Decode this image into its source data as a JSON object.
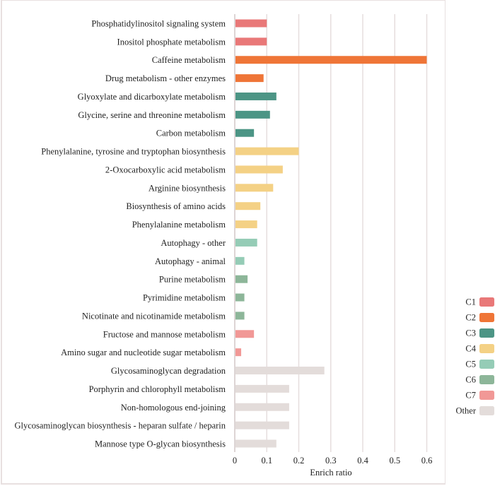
{
  "chart_data": {
    "type": "bar",
    "orientation": "horizontal",
    "title": "",
    "xlabel": "Enrich ratio",
    "ylabel": "",
    "xlim": [
      0,
      0.6
    ],
    "xticks": [
      "0",
      "0.1",
      "0.2",
      "0.3",
      "0.4",
      "0.5",
      "0.6"
    ],
    "xtick_values": [
      0,
      0.1,
      0.2,
      0.3,
      0.4,
      0.5,
      0.6
    ],
    "grid": "vertical",
    "legend_position": "right",
    "legend": [
      {
        "name": "C1",
        "color": "#e97878"
      },
      {
        "name": "C2",
        "color": "#ef7537"
      },
      {
        "name": "C3",
        "color": "#4c9585"
      },
      {
        "name": "C4",
        "color": "#f4d185"
      },
      {
        "name": "C5",
        "color": "#95ccb6"
      },
      {
        "name": "C6",
        "color": "#8db699"
      },
      {
        "name": "C7",
        "color": "#f19896"
      },
      {
        "name": "Other",
        "color": "#e3dcda"
      }
    ],
    "categories": [
      "Phosphatidylinositol signaling system",
      "Inositol phosphate metabolism",
      "Caffeine metabolism",
      "Drug metabolism - other enzymes",
      "Glyoxylate and dicarboxylate metabolism",
      "Glycine, serine and threonine metabolism",
      "Carbon metabolism",
      "Phenylalanine, tyrosine and tryptophan biosynthesis",
      "2-Oxocarboxylic acid metabolism",
      "Arginine biosynthesis",
      "Biosynthesis of amino acids",
      "Phenylalanine metabolism",
      "Autophagy - other",
      "Autophagy - animal",
      "Purine metabolism",
      "Pyrimidine metabolism",
      "Nicotinate and nicotinamide metabolism",
      "Fructose and mannose metabolism",
      "Amino sugar and nucleotide sugar metabolism",
      "Glycosaminoglycan degradation",
      "Porphyrin and chlorophyll metabolism",
      "Non-homologous end-joining",
      "Glycosaminoglycan biosynthesis - heparan sulfate / heparin",
      "Mannose type O-glycan biosynthesis"
    ],
    "values": [
      0.1,
      0.1,
      0.6,
      0.09,
      0.13,
      0.11,
      0.06,
      0.2,
      0.15,
      0.12,
      0.08,
      0.07,
      0.07,
      0.03,
      0.04,
      0.03,
      0.03,
      0.06,
      0.02,
      0.28,
      0.17,
      0.17,
      0.17,
      0.13
    ],
    "groups": [
      "C1",
      "C1",
      "C2",
      "C2",
      "C3",
      "C3",
      "C3",
      "C4",
      "C4",
      "C4",
      "C4",
      "C4",
      "C5",
      "C5",
      "C6",
      "C6",
      "C6",
      "C7",
      "C7",
      "Other",
      "Other",
      "Other",
      "Other",
      "Other"
    ]
  }
}
